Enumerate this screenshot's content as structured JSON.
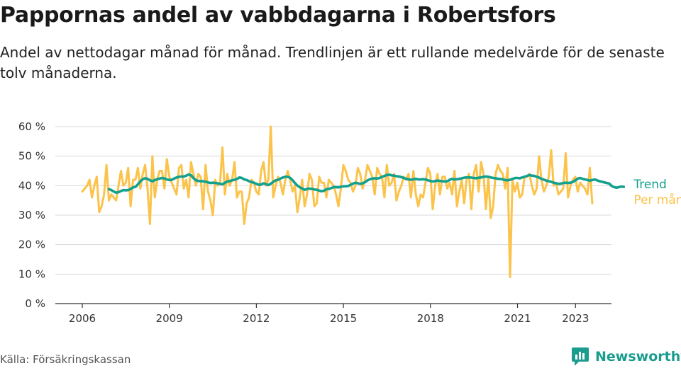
{
  "header": {
    "title": "Pappornas andel av vabbdagarna i Robertsfors",
    "subtitle": "Andel av nettodagar månad för månad. Trendlinjen är ett rullande medelvärde för de senaste tolv månaderna."
  },
  "footer": {
    "source": "Källa: Försäkringskassan",
    "brand": "Newsworthy"
  },
  "colors": {
    "trend": "#14a08e",
    "monthly": "#fbc34a",
    "grid": "#d9d9d9",
    "axis": "#333333",
    "brand": "#1a9c8e"
  },
  "icons": {
    "logo": "chart-bubble-icon"
  },
  "chart_data": {
    "type": "line",
    "title": "Pappornas andel av vabbdagarna i Robertsfors",
    "subtitle": "Andel av nettodagar månad för månad. Trendlinjen är ett rullande medelvärde för de senaste tolv månaderna.",
    "xlabel": "",
    "ylabel": "",
    "xlim": [
      2005.5,
      2024.0
    ],
    "ylim": [
      0,
      60
    ],
    "y_ticks": [
      0,
      10,
      20,
      30,
      40,
      50,
      60
    ],
    "y_tick_labels": [
      "0 %",
      "10 %",
      "20 %",
      "30 %",
      "40 %",
      "50 %",
      "60 %"
    ],
    "x_ticks": [
      2006,
      2009,
      2012,
      2015,
      2018,
      2021,
      2023
    ],
    "x_tick_labels": [
      "2006",
      "2009",
      "2012",
      "2015",
      "2018",
      "2021",
      "2023"
    ],
    "grid": "horizontal",
    "legend": "right-end labels",
    "series": [
      {
        "name": "Per månad",
        "x_start": 2006.0,
        "step": 0.0833,
        "values": [
          38,
          39,
          40,
          42,
          36,
          40,
          43,
          31,
          33,
          37,
          47,
          35,
          37,
          36,
          35,
          40,
          45,
          40,
          41,
          46,
          33,
          42,
          42,
          46,
          39,
          44,
          47,
          39,
          27,
          50,
          36,
          42,
          45,
          45,
          39,
          49,
          43,
          41,
          39,
          37,
          46,
          47,
          39,
          42,
          36,
          48,
          44,
          40,
          44,
          43,
          32,
          47,
          38,
          35,
          30,
          42,
          40,
          41,
          53,
          37,
          44,
          40,
          42,
          48,
          36,
          38,
          38,
          27,
          34,
          36,
          42,
          41,
          38,
          37,
          45,
          48,
          40,
          42,
          60,
          36,
          40,
          43,
          41,
          37,
          42,
          45,
          42,
          38,
          40,
          31,
          36,
          42,
          33,
          37,
          44,
          42,
          33,
          34,
          43,
          41,
          41,
          36,
          42,
          41,
          40,
          37,
          33,
          39,
          47,
          45,
          42,
          41,
          38,
          40,
          46,
          44,
          39,
          42,
          47,
          45,
          43,
          37,
          46,
          44,
          43,
          36,
          47,
          40,
          41,
          44,
          35,
          38,
          40,
          43,
          42,
          44,
          36,
          45,
          37,
          33,
          37,
          36,
          41,
          46,
          44,
          32,
          40,
          44,
          37,
          43,
          43,
          39,
          41,
          37,
          45,
          33,
          38,
          42,
          34,
          42,
          44,
          32,
          44,
          47,
          38,
          48,
          44,
          32,
          43,
          29,
          33,
          44,
          47,
          45,
          44,
          39,
          46,
          9,
          42,
          38,
          41,
          36,
          37,
          43,
          43,
          44,
          40,
          37,
          39,
          50,
          42,
          38,
          40,
          43,
          52,
          40,
          41,
          37,
          38,
          39,
          51,
          36,
          40,
          42,
          43,
          38,
          41,
          40,
          39,
          37,
          46,
          34
        ],
        "color": "#fbc34a"
      },
      {
        "name": "Trend",
        "x_start": 2006.92,
        "step": 0.0833,
        "values": [
          38.8,
          38.5,
          38.0,
          37.6,
          37.8,
          38.2,
          38.5,
          38.4,
          38.5,
          38.9,
          39.4,
          39.6,
          40.5,
          41.5,
          42.2,
          42.5,
          42.3,
          41.8,
          41.5,
          41.9,
          42.2,
          42.4,
          42.6,
          42.4,
          42.1,
          41.9,
          42.0,
          42.4,
          42.8,
          43.0,
          43.1,
          43.1,
          43.4,
          43.8,
          43.5,
          42.5,
          41.8,
          41.6,
          41.5,
          41.5,
          41.3,
          41.1,
          40.9,
          41.0,
          40.9,
          40.8,
          40.6,
          40.5,
          41.0,
          41.4,
          41.6,
          41.8,
          42.0,
          42.3,
          42.8,
          42.6,
          42.1,
          41.9,
          41.5,
          41.2,
          41.0,
          40.6,
          40.3,
          40.4,
          40.8,
          40.5,
          40.2,
          40.7,
          41.3,
          41.8,
          42.0,
          42.4,
          42.8,
          43.0,
          43.0,
          42.6,
          41.8,
          40.8,
          40.0,
          39.4,
          39.0,
          38.6,
          38.9,
          39.0,
          38.9,
          38.7,
          38.6,
          38.3,
          38.1,
          38.3,
          38.8,
          38.9,
          39.2,
          39.5,
          39.5,
          39.4,
          39.6,
          39.8,
          39.8,
          39.9,
          40.3,
          40.7,
          41.0,
          40.8,
          40.6,
          40.8,
          41.2,
          41.8,
          42.2,
          42.4,
          42.5,
          42.4,
          42.6,
          43.0,
          43.3,
          43.6,
          43.7,
          43.5,
          43.4,
          43.2,
          43.1,
          42.9,
          42.6,
          42.3,
          42.1,
          42.0,
          42.2,
          42.3,
          42.1,
          42.1,
          42.2,
          42.1,
          41.8,
          41.6,
          41.4,
          41.6,
          41.7,
          41.6,
          41.5,
          41.4,
          41.5,
          42.0,
          42.3,
          42.1,
          42.2,
          42.3,
          42.5,
          42.7,
          42.8,
          42.8,
          42.7,
          42.6,
          42.5,
          42.7,
          42.8,
          43.0,
          43.1,
          43.0,
          42.8,
          42.6,
          42.5,
          42.3,
          42.3,
          42.1,
          41.9,
          41.8,
          42.0,
          42.3,
          42.6,
          42.6,
          42.5,
          42.8,
          43.0,
          43.3,
          43.6,
          43.4,
          43.3,
          43.0,
          42.7,
          42.3,
          42.0,
          41.7,
          41.5,
          41.3,
          41.0,
          40.8,
          40.6,
          40.7,
          40.9,
          41.0,
          40.9,
          41.0,
          41.3,
          41.8,
          42.4,
          42.6,
          42.3,
          42.1,
          41.9,
          41.7,
          41.9,
          42.1,
          41.8,
          41.5,
          41.3,
          41.1,
          40.9,
          40.7,
          39.9,
          39.5,
          39.3,
          39.5,
          39.7,
          39.6
        ],
        "color": "#14a08e"
      }
    ]
  }
}
